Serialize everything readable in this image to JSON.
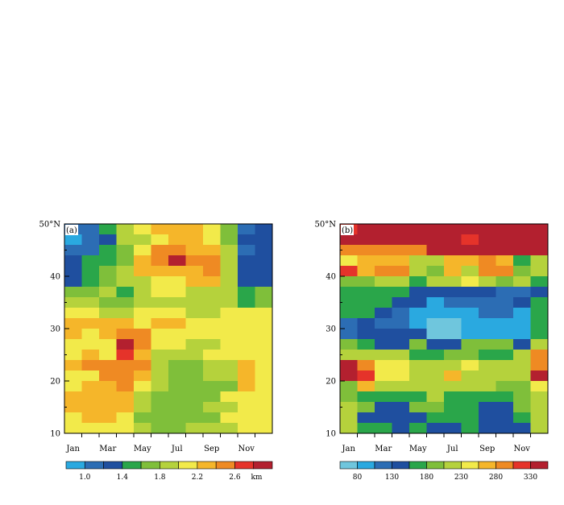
{
  "palette_a": [
    "#2aa9e0",
    "#2c6db4",
    "#1f4f9f",
    "#2aa64a",
    "#7fbf3a",
    "#b5d23c",
    "#f2ea4a",
    "#f5b62a",
    "#ef8a23",
    "#e5332a",
    "#b3202f"
  ],
  "palette_b": [
    "#6fc6dd",
    "#2aa9e0",
    "#2c6db4",
    "#1f4f9f",
    "#2aa64a",
    "#7fbf3a",
    "#b5d23c",
    "#f2ea4a",
    "#f5b62a",
    "#ef8a23",
    "#e5332a",
    "#b3202f"
  ],
  "chart_data": [
    {
      "type": "heatmap",
      "panel_label": "(a)",
      "x_ticks": [
        "Jan",
        "Mar",
        "May",
        "Jul",
        "Sep",
        "Nov"
      ],
      "y_ticks": [
        "50°N",
        "40",
        "30",
        "20",
        "10"
      ],
      "ylim": [
        10,
        50
      ],
      "colorbar_labels": [
        "1.0",
        "1.4",
        "1.8",
        "2.2",
        "2.6"
      ],
      "colorbar_unit": "km",
      "bins": [
        0.8,
        1.0,
        1.2,
        1.4,
        1.6,
        1.8,
        2.0,
        2.2,
        2.4,
        2.6,
        2.8,
        3.0
      ],
      "grid_index": [
        [
          1,
          1,
          3,
          5,
          6,
          7,
          7,
          7,
          6,
          4,
          1,
          2
        ],
        [
          0,
          1,
          2,
          5,
          5,
          6,
          7,
          7,
          6,
          4,
          2,
          2
        ],
        [
          1,
          1,
          3,
          4,
          6,
          8,
          8,
          7,
          7,
          5,
          1,
          2
        ],
        [
          2,
          3,
          3,
          4,
          7,
          8,
          10,
          8,
          8,
          5,
          2,
          2
        ],
        [
          2,
          3,
          4,
          5,
          7,
          7,
          7,
          7,
          8,
          5,
          2,
          2
        ],
        [
          2,
          3,
          4,
          5,
          5,
          6,
          6,
          7,
          7,
          5,
          2,
          2
        ],
        [
          4,
          4,
          5,
          3,
          5,
          6,
          6,
          5,
          5,
          5,
          3,
          4
        ],
        [
          5,
          5,
          4,
          4,
          5,
          5,
          5,
          5,
          5,
          5,
          3,
          4
        ],
        [
          6,
          6,
          5,
          5,
          6,
          6,
          6,
          5,
          5,
          6,
          6,
          6
        ],
        [
          7,
          7,
          7,
          7,
          6,
          7,
          7,
          6,
          6,
          6,
          6,
          6
        ],
        [
          7,
          6,
          7,
          8,
          8,
          6,
          6,
          6,
          6,
          6,
          6,
          6
        ],
        [
          6,
          6,
          6,
          10,
          8,
          6,
          6,
          5,
          5,
          6,
          6,
          6
        ],
        [
          6,
          7,
          6,
          9,
          7,
          5,
          5,
          5,
          6,
          6,
          6,
          6
        ],
        [
          7,
          8,
          8,
          8,
          8,
          5,
          4,
          4,
          5,
          5,
          7,
          6
        ],
        [
          6,
          6,
          8,
          8,
          7,
          5,
          4,
          4,
          5,
          5,
          7,
          6
        ],
        [
          6,
          7,
          7,
          8,
          6,
          5,
          4,
          4,
          4,
          4,
          7,
          6
        ],
        [
          7,
          7,
          7,
          7,
          5,
          4,
          4,
          4,
          4,
          6,
          6,
          6
        ],
        [
          7,
          7,
          7,
          7,
          5,
          4,
          4,
          4,
          5,
          5,
          6,
          6
        ],
        [
          6,
          7,
          7,
          6,
          4,
          4,
          4,
          4,
          4,
          6,
          6,
          6
        ],
        [
          6,
          6,
          6,
          6,
          5,
          4,
          4,
          5,
          5,
          5,
          6,
          6
        ]
      ]
    },
    {
      "type": "heatmap",
      "panel_label": "(b)",
      "x_ticks": [
        "Jan",
        "Mar",
        "May",
        "Jul",
        "Sep",
        "Nov"
      ],
      "y_ticks": [
        "50°N",
        "40",
        "30",
        "20",
        "10"
      ],
      "ylim": [
        10,
        50
      ],
      "colorbar_labels": [
        "80",
        "130",
        "180",
        "230",
        "280",
        "330"
      ],
      "bins": [
        55,
        80,
        105,
        130,
        155,
        180,
        205,
        230,
        255,
        280,
        305,
        330,
        355
      ],
      "grid_index": [
        [
          10,
          11,
          11,
          11,
          11,
          11,
          11,
          11,
          11,
          11,
          11,
          11
        ],
        [
          11,
          11,
          11,
          11,
          11,
          11,
          11,
          10,
          11,
          11,
          11,
          11
        ],
        [
          9,
          9,
          9,
          9,
          9,
          11,
          11,
          11,
          11,
          11,
          11,
          11
        ],
        [
          7,
          8,
          8,
          8,
          6,
          6,
          8,
          8,
          9,
          8,
          4,
          6
        ],
        [
          10,
          8,
          9,
          9,
          6,
          5,
          8,
          6,
          9,
          9,
          5,
          6
        ],
        [
          5,
          5,
          6,
          6,
          4,
          6,
          6,
          7,
          6,
          5,
          6,
          4
        ],
        [
          4,
          4,
          4,
          4,
          3,
          3,
          3,
          3,
          3,
          2,
          2,
          3
        ],
        [
          4,
          4,
          4,
          3,
          3,
          1,
          2,
          2,
          2,
          2,
          3,
          4
        ],
        [
          4,
          4,
          3,
          2,
          1,
          1,
          1,
          1,
          2,
          2,
          1,
          4
        ],
        [
          2,
          3,
          2,
          2,
          1,
          0,
          0,
          1,
          1,
          1,
          1,
          4
        ],
        [
          2,
          3,
          3,
          3,
          3,
          0,
          0,
          1,
          1,
          1,
          1,
          4
        ],
        [
          5,
          4,
          3,
          3,
          5,
          3,
          3,
          5,
          5,
          5,
          3,
          6
        ],
        [
          6,
          6,
          6,
          6,
          4,
          4,
          5,
          5,
          4,
          4,
          6,
          9
        ],
        [
          11,
          9,
          7,
          7,
          6,
          6,
          6,
          7,
          6,
          6,
          6,
          9
        ],
        [
          11,
          10,
          7,
          7,
          6,
          6,
          8,
          6,
          6,
          6,
          6,
          11
        ],
        [
          5,
          8,
          6,
          6,
          6,
          6,
          6,
          6,
          6,
          5,
          5,
          7
        ],
        [
          5,
          4,
          4,
          4,
          4,
          6,
          4,
          4,
          4,
          4,
          5,
          6
        ],
        [
          6,
          5,
          3,
          3,
          5,
          5,
          4,
          4,
          3,
          3,
          5,
          6
        ],
        [
          6,
          3,
          3,
          3,
          3,
          4,
          4,
          4,
          3,
          3,
          4,
          6
        ],
        [
          6,
          4,
          4,
          3,
          4,
          3,
          3,
          4,
          3,
          3,
          3,
          6
        ]
      ]
    }
  ]
}
